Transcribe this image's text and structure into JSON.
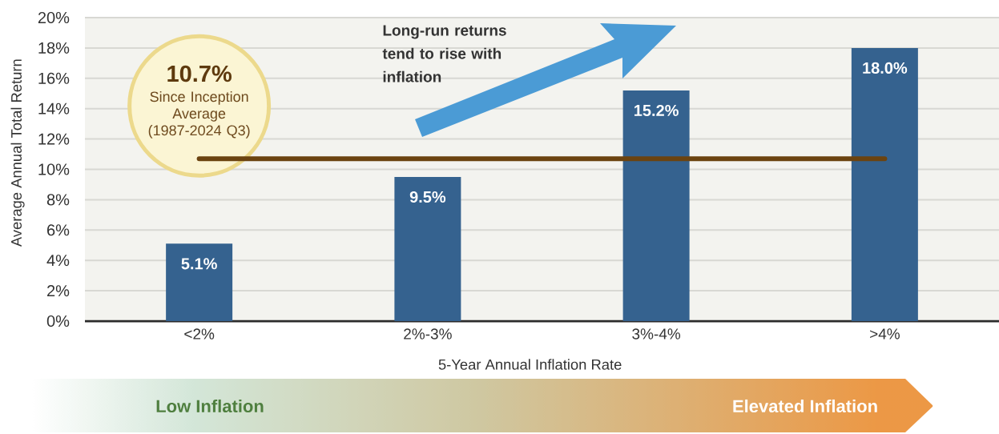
{
  "chart_data": {
    "type": "bar",
    "categories": [
      "<2%",
      "2%-3%",
      "3%-4%",
      ">4%"
    ],
    "values": [
      5.1,
      9.5,
      15.2,
      18.0
    ],
    "color": "#35628f",
    "value_labels": [
      "5.1%",
      "9.5%",
      "15.2%",
      "18.0%"
    ],
    "xlabel": "5-Year Annual Inflation Rate",
    "ylabel": "Average Annual Total Return",
    "ylim": [
      0,
      20
    ],
    "yticks": [
      {
        "value": 0,
        "label": "0%"
      },
      {
        "value": 2,
        "label": "2%"
      },
      {
        "value": 4,
        "label": "4%"
      },
      {
        "value": 6,
        "label": "6%"
      },
      {
        "value": 8,
        "label": "8%"
      },
      {
        "value": 10,
        "label": "10%"
      },
      {
        "value": 12,
        "label": "12%"
      },
      {
        "value": 14,
        "label": "14%"
      },
      {
        "value": 16,
        "label": "16%"
      },
      {
        "value": 18,
        "label": "18%"
      },
      {
        "value": 20,
        "label": "20%"
      }
    ],
    "grid": "y",
    "ref_lines": [
      {
        "axis": "y",
        "value": 10.7,
        "label": "Since Inception Average (1987-2024 Q3)",
        "color": "#6b4310"
      }
    ],
    "annotations": [
      "10.7%",
      "Long-run returns tend to rise with inflation",
      "Low Inflation",
      "Elevated Inflation"
    ]
  }
}
